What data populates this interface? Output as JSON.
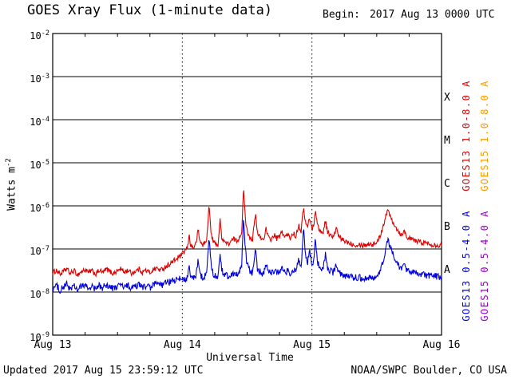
{
  "header": {
    "title": "GOES Xray Flux (1-minute data)",
    "begin_label": "Begin:",
    "begin_value": "2017 Aug 13 0000 UTC"
  },
  "footer": {
    "updated": "Updated 2017 Aug 15 23:59:12 UTC",
    "source": "NOAA/SWPC Boulder, CO USA"
  },
  "axes": {
    "y": {
      "label_base": "Watts m",
      "label_sup": "-2",
      "tick_exponents": [
        -2,
        -3,
        -4,
        -5,
        -6,
        -7,
        -8,
        -9
      ]
    },
    "x": {
      "title": "Universal Time",
      "total_hours": 72,
      "minor_tick_hours": 6,
      "day_gridlines_hours": [
        24,
        48
      ],
      "ticks": [
        {
          "label": "Aug 13",
          "hour": 0
        },
        {
          "label": "Aug 14",
          "hour": 24
        },
        {
          "label": "Aug 15",
          "hour": 48
        },
        {
          "label": "Aug 16",
          "hour": 72
        }
      ]
    }
  },
  "flare_classes": [
    {
      "label": "X",
      "mid_exp": -3.5
    },
    {
      "label": "M",
      "mid_exp": -4.5
    },
    {
      "label": "C",
      "mid_exp": -5.5
    },
    {
      "label": "B",
      "mid_exp": -6.5
    },
    {
      "label": "A",
      "mid_exp": -7.5
    }
  ],
  "legend": [
    {
      "label": "GOES13 1.0-8.0 A",
      "color": "#dd0000",
      "column": 0,
      "band": "top"
    },
    {
      "label": "GOES15 1.0-8.0 A",
      "color": "#ff9900",
      "column": 1,
      "band": "top"
    },
    {
      "label": "GOES13 0.5-4.0 A",
      "color": "#0000dd",
      "column": 0,
      "band": "bottom"
    },
    {
      "label": "GOES15 0.5-4.0 A",
      "color": "#9900cc",
      "column": 1,
      "band": "bottom"
    }
  ],
  "chart_data": {
    "type": "line",
    "title": "GOES Xray Flux (1-minute data)",
    "xlabel": "Universal Time",
    "ylabel": "Watts m^-2",
    "x_unit": "hours since 2017-08-13 00:00 UTC",
    "xlim": [
      0,
      72
    ],
    "yscale": "log",
    "ylim": [
      1e-09,
      0.01
    ],
    "grid": "solid horizontal line per decade; dotted vertical lines at day boundaries",
    "legend_position": "right, rotated",
    "series": [
      {
        "name": "GOES13 1.0-8.0 A (long)",
        "color": "#dd0000",
        "noise_decades": 0.06,
        "points": [
          [
            0,
            2.8e-08
          ],
          [
            0.7,
            3.2e-08
          ],
          [
            1.4,
            2.6e-08
          ],
          [
            2,
            3e-08
          ],
          [
            2.6,
            3.5e-08
          ],
          [
            3.2,
            2.7e-08
          ],
          [
            4,
            3.1e-08
          ],
          [
            4.6,
            2.5e-08
          ],
          [
            5.2,
            2.9e-08
          ],
          [
            6,
            3.3e-08
          ],
          [
            6.6,
            2.8e-08
          ],
          [
            7.2,
            3.1e-08
          ],
          [
            8,
            2.6e-08
          ],
          [
            8.6,
            3.2e-08
          ],
          [
            9.2,
            2.8e-08
          ],
          [
            10,
            3.4e-08
          ],
          [
            10.6,
            3e-08
          ],
          [
            11.2,
            2.7e-08
          ],
          [
            12,
            3.1e-08
          ],
          [
            12.6,
            3.5e-08
          ],
          [
            13.2,
            2.9e-08
          ],
          [
            14,
            3.2e-08
          ],
          [
            14.6,
            2.7e-08
          ],
          [
            15.2,
            3e-08
          ],
          [
            16,
            3.4e-08
          ],
          [
            16.6,
            2.9e-08
          ],
          [
            17.2,
            3.2e-08
          ],
          [
            18,
            2.8e-08
          ],
          [
            18.6,
            3.3e-08
          ],
          [
            19.2,
            3.6e-08
          ],
          [
            20,
            3.2e-08
          ],
          [
            20.8,
            3.8e-08
          ],
          [
            21.6,
            4.4e-08
          ],
          [
            22.4,
            5.2e-08
          ],
          [
            23.2,
            6.2e-08
          ],
          [
            24,
            7.5e-08
          ],
          [
            24.5,
            9e-08
          ],
          [
            25,
            1.1e-07
          ],
          [
            25.25,
            2.2e-07
          ],
          [
            25.5,
            1.3e-07
          ],
          [
            26,
            1.05e-07
          ],
          [
            26.5,
            1.3e-07
          ],
          [
            26.95,
            2.8e-07
          ],
          [
            27.25,
            1.5e-07
          ],
          [
            27.8,
            1.25e-07
          ],
          [
            28.5,
            1.5e-07
          ],
          [
            28.95,
            1.1e-06
          ],
          [
            29.2,
            3.5e-07
          ],
          [
            29.5,
            1.7e-07
          ],
          [
            30,
            1.35e-07
          ],
          [
            30.6,
            1.25e-07
          ],
          [
            31,
            4.5e-07
          ],
          [
            31.3,
            1.9e-07
          ],
          [
            31.9,
            1.45e-07
          ],
          [
            32.5,
            1.3e-07
          ],
          [
            33.1,
            1.55e-07
          ],
          [
            33.6,
            1.7e-07
          ],
          [
            34.1,
            1.5e-07
          ],
          [
            34.6,
            1.9e-07
          ],
          [
            35,
            2.6e-07
          ],
          [
            35.35,
            2.6e-06
          ],
          [
            35.65,
            5.5e-07
          ],
          [
            36,
            2.6e-07
          ],
          [
            36.5,
            1.9e-07
          ],
          [
            37,
            1.65e-07
          ],
          [
            37.55,
            6.5e-07
          ],
          [
            37.9,
            2.3e-07
          ],
          [
            38.5,
            1.85e-07
          ],
          [
            39,
            1.6e-07
          ],
          [
            39.5,
            2.9e-07
          ],
          [
            39.9,
            1.85e-07
          ],
          [
            40.5,
            1.65e-07
          ],
          [
            41,
            2.1e-07
          ],
          [
            41.5,
            1.75e-07
          ],
          [
            42,
            1.95e-07
          ],
          [
            42.5,
            2.5e-07
          ],
          [
            43,
            1.85e-07
          ],
          [
            43.5,
            2.15e-07
          ],
          [
            44,
            1.75e-07
          ],
          [
            44.5,
            2.35e-07
          ],
          [
            45,
            1.95e-07
          ],
          [
            45.5,
            3.6e-07
          ],
          [
            46,
            2.6e-07
          ],
          [
            46.45,
            9.5e-07
          ],
          [
            46.8,
            4.2e-07
          ],
          [
            47.2,
            3.1e-07
          ],
          [
            47.55,
            5.5e-07
          ],
          [
            48,
            2.9e-07
          ],
          [
            48.3,
            3.3e-07
          ],
          [
            48.65,
            8.5e-07
          ],
          [
            49,
            3.6e-07
          ],
          [
            49.5,
            2.6e-07
          ],
          [
            50,
            2.25e-07
          ],
          [
            50.5,
            4.6e-07
          ],
          [
            50.9,
            2.5e-07
          ],
          [
            51.5,
            2.05e-07
          ],
          [
            52,
            1.85e-07
          ],
          [
            52.5,
            3.1e-07
          ],
          [
            52.9,
            2e-07
          ],
          [
            53.5,
            1.65e-07
          ],
          [
            54,
            1.55e-07
          ],
          [
            54.6,
            1.45e-07
          ],
          [
            55.2,
            1.35e-07
          ],
          [
            56,
            1.25e-07
          ],
          [
            56.7,
            1.3e-07
          ],
          [
            57.4,
            1.22e-07
          ],
          [
            58,
            1.26e-07
          ],
          [
            58.7,
            1.32e-07
          ],
          [
            59.4,
            1.27e-07
          ],
          [
            60,
            1.45e-07
          ],
          [
            60.5,
            1.8e-07
          ],
          [
            61,
            2.9e-07
          ],
          [
            61.5,
            4.8e-07
          ],
          [
            61.95,
            7.8e-07
          ],
          [
            62.3,
            6.8e-07
          ],
          [
            62.7,
            5.2e-07
          ],
          [
            63.1,
            4.1e-07
          ],
          [
            63.6,
            3.1e-07
          ],
          [
            64.1,
            2.5e-07
          ],
          [
            64.6,
            2.1e-07
          ],
          [
            65,
            2.7e-07
          ],
          [
            65.5,
            2e-07
          ],
          [
            66,
            1.75e-07
          ],
          [
            66.6,
            1.65e-07
          ],
          [
            67.2,
            1.55e-07
          ],
          [
            68,
            1.45e-07
          ],
          [
            68.7,
            1.4e-07
          ],
          [
            69.4,
            1.35e-07
          ],
          [
            70,
            1.3e-07
          ],
          [
            70.7,
            1.25e-07
          ],
          [
            71.4,
            1.22e-07
          ],
          [
            72,
            1.2e-07
          ]
        ]
      },
      {
        "name": "GOES13 0.5-4.0 A (short)",
        "color": "#0000dd",
        "noise_decades": 0.08,
        "points": [
          [
            0,
            1.25e-08
          ],
          [
            0.7,
            1.4e-08
          ],
          [
            1.4,
            1.1e-08
          ],
          [
            2,
            1.3e-08
          ],
          [
            2.6,
            1.5e-08
          ],
          [
            3.2,
            1.2e-08
          ],
          [
            4,
            1.35e-08
          ],
          [
            4.6,
            1.1e-08
          ],
          [
            5.2,
            1.3e-08
          ],
          [
            6,
            1.45e-08
          ],
          [
            6.6,
            1.2e-08
          ],
          [
            7.2,
            1.35e-08
          ],
          [
            8,
            1.15e-08
          ],
          [
            8.6,
            1.4e-08
          ],
          [
            9.2,
            1.25e-08
          ],
          [
            10,
            1.5e-08
          ],
          [
            10.6,
            1.3e-08
          ],
          [
            11.2,
            1.2e-08
          ],
          [
            12,
            1.35e-08
          ],
          [
            12.6,
            1.5e-08
          ],
          [
            13.2,
            1.28e-08
          ],
          [
            14,
            1.4e-08
          ],
          [
            14.6,
            1.2e-08
          ],
          [
            15.2,
            1.32e-08
          ],
          [
            16,
            1.48e-08
          ],
          [
            16.6,
            1.28e-08
          ],
          [
            17.2,
            1.4e-08
          ],
          [
            18,
            1.24e-08
          ],
          [
            18.6,
            1.45e-08
          ],
          [
            19.2,
            1.55e-08
          ],
          [
            20,
            1.4e-08
          ],
          [
            20.8,
            1.6e-08
          ],
          [
            21.6,
            1.7e-08
          ],
          [
            22.4,
            1.8e-08
          ],
          [
            23.2,
            1.95e-08
          ],
          [
            24,
            2.1e-08
          ],
          [
            24.5,
            2e-08
          ],
          [
            25,
            2.2e-08
          ],
          [
            25.25,
            4.5e-08
          ],
          [
            25.5,
            2.3e-08
          ],
          [
            26,
            2.05e-08
          ],
          [
            26.5,
            2.2e-08
          ],
          [
            26.95,
            6e-08
          ],
          [
            27.25,
            2.5e-08
          ],
          [
            27.8,
            2.2e-08
          ],
          [
            28.5,
            2.5e-08
          ],
          [
            28.95,
            2.3e-07
          ],
          [
            29.2,
            6e-08
          ],
          [
            29.5,
            2.9e-08
          ],
          [
            30,
            2.4e-08
          ],
          [
            30.6,
            2.2e-08
          ],
          [
            31,
            8.5e-08
          ],
          [
            31.3,
            3.1e-08
          ],
          [
            31.9,
            2.5e-08
          ],
          [
            32.5,
            2.3e-08
          ],
          [
            33.1,
            2.6e-08
          ],
          [
            33.6,
            2.8e-08
          ],
          [
            34.1,
            2.5e-08
          ],
          [
            34.6,
            3e-08
          ],
          [
            35,
            4.2e-08
          ],
          [
            35.35,
            5.8e-07
          ],
          [
            35.65,
            1e-07
          ],
          [
            36,
            4.2e-08
          ],
          [
            36.5,
            3.1e-08
          ],
          [
            37,
            2.7e-08
          ],
          [
            37.55,
            1.2e-07
          ],
          [
            37.9,
            3.4e-08
          ],
          [
            38.5,
            2.9e-08
          ],
          [
            39,
            2.6e-08
          ],
          [
            39.5,
            4.6e-08
          ],
          [
            39.9,
            3e-08
          ],
          [
            40.5,
            2.7e-08
          ],
          [
            41,
            3.2e-08
          ],
          [
            41.5,
            2.8e-08
          ],
          [
            42,
            3e-08
          ],
          [
            42.5,
            3.6e-08
          ],
          [
            43,
            2.8e-08
          ],
          [
            43.5,
            3.1e-08
          ],
          [
            44,
            2.7e-08
          ],
          [
            44.5,
            3.3e-08
          ],
          [
            45,
            2.9e-08
          ],
          [
            45.5,
            5.2e-08
          ],
          [
            46,
            3.6e-08
          ],
          [
            46.45,
            3.1e-07
          ],
          [
            46.8,
            7.5e-08
          ],
          [
            47.2,
            4.6e-08
          ],
          [
            47.55,
            9.5e-08
          ],
          [
            48,
            4.2e-08
          ],
          [
            48.3,
            4.6e-08
          ],
          [
            48.65,
            1.9e-07
          ],
          [
            49,
            5.2e-08
          ],
          [
            49.5,
            3.6e-08
          ],
          [
            50,
            3.2e-08
          ],
          [
            50.5,
            7.5e-08
          ],
          [
            50.9,
            3.5e-08
          ],
          [
            51.5,
            3e-08
          ],
          [
            52,
            2.8e-08
          ],
          [
            52.5,
            4.6e-08
          ],
          [
            52.9,
            2.9e-08
          ],
          [
            53.5,
            2.6e-08
          ],
          [
            54,
            2.45e-08
          ],
          [
            54.6,
            2.35e-08
          ],
          [
            55.2,
            2.25e-08
          ],
          [
            56,
            2.15e-08
          ],
          [
            56.7,
            2.2e-08
          ],
          [
            57.4,
            2.1e-08
          ],
          [
            58,
            2.15e-08
          ],
          [
            58.7,
            2.2e-08
          ],
          [
            59.4,
            2.12e-08
          ],
          [
            60,
            2.3e-08
          ],
          [
            60.5,
            2.7e-08
          ],
          [
            61,
            4.2e-08
          ],
          [
            61.5,
            7.5e-08
          ],
          [
            61.95,
            1.65e-07
          ],
          [
            62.3,
            1.35e-07
          ],
          [
            62.7,
            9.5e-08
          ],
          [
            63.1,
            7.2e-08
          ],
          [
            63.6,
            5.2e-08
          ],
          [
            64.1,
            4.1e-08
          ],
          [
            64.6,
            3.5e-08
          ],
          [
            65,
            4.3e-08
          ],
          [
            65.5,
            3.3e-08
          ],
          [
            66,
            3e-08
          ],
          [
            66.6,
            2.8e-08
          ],
          [
            67.2,
            2.7e-08
          ],
          [
            68,
            2.6e-08
          ],
          [
            68.7,
            2.5e-08
          ],
          [
            69.4,
            2.45e-08
          ],
          [
            70,
            2.4e-08
          ],
          [
            70.7,
            2.35e-08
          ],
          [
            71.4,
            2.3e-08
          ],
          [
            72,
            2.28e-08
          ]
        ]
      }
    ]
  }
}
